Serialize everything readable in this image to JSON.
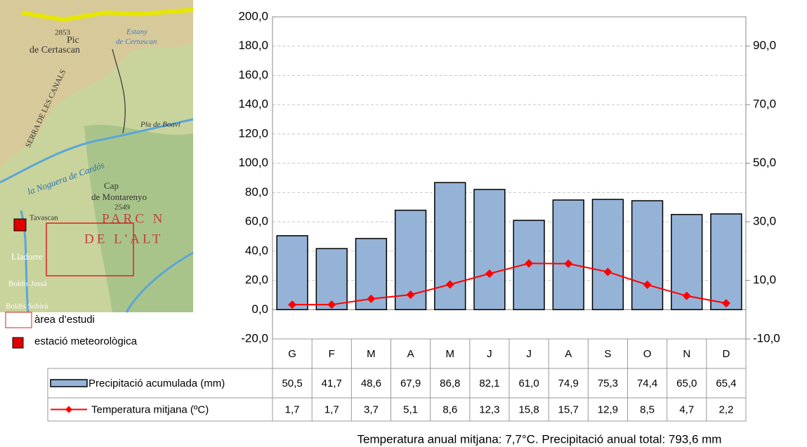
{
  "chart_data": {
    "type": "bar",
    "categories": [
      "G",
      "F",
      "M",
      "A",
      "M",
      "J",
      "J",
      "A",
      "S",
      "O",
      "N",
      "D"
    ],
    "series": [
      {
        "name": "Precipitació acumulada (mm)",
        "type": "bar",
        "color": "#95b3d7",
        "values": [
          50.5,
          41.7,
          48.6,
          67.9,
          86.8,
          82.1,
          61.0,
          74.9,
          75.3,
          74.4,
          65.0,
          65.4
        ],
        "value_labels": [
          "50,5",
          "41,7",
          "48,6",
          "67,9",
          "86,8",
          "82,1",
          "61,0",
          "74,9",
          "75,3",
          "74,4",
          "65,0",
          "65,4"
        ]
      },
      {
        "name": "Temperatura mitjana (ºC)",
        "type": "line",
        "axis": "y2",
        "color": "#ff0000",
        "values": [
          1.7,
          1.7,
          3.7,
          5.1,
          8.6,
          12.3,
          15.8,
          15.7,
          12.9,
          8.5,
          4.7,
          2.2
        ],
        "value_labels": [
          "1,7",
          "1,7",
          "3,7",
          "5,1",
          "8,6",
          "12,3",
          "15,8",
          "15,7",
          "12,9",
          "8,5",
          "4,7",
          "2,2"
        ]
      }
    ],
    "ylim": [
      -20,
      200
    ],
    "yticks": [
      {
        "value": -20,
        "label": "-20,0"
      },
      {
        "value": 0,
        "label": "0,0"
      },
      {
        "value": 20,
        "label": "20,0"
      },
      {
        "value": 40,
        "label": "40,0"
      },
      {
        "value": 60,
        "label": "60,0"
      },
      {
        "value": 80,
        "label": "80,0"
      },
      {
        "value": 100,
        "label": "100,0"
      },
      {
        "value": 120,
        "label": "120,0"
      },
      {
        "value": 140,
        "label": "140,0"
      },
      {
        "value": 160,
        "label": "160,0"
      },
      {
        "value": 180,
        "label": "180,0"
      },
      {
        "value": 200,
        "label": "200,0"
      }
    ],
    "y2lim": [
      -10,
      100
    ],
    "y2ticks": [
      {
        "value": -10,
        "label": "-10,0"
      },
      {
        "value": 10,
        "label": "10,0"
      },
      {
        "value": 30,
        "label": "30,0"
      },
      {
        "value": 50,
        "label": "50,0"
      },
      {
        "value": 70,
        "label": "70,0"
      },
      {
        "value": 90,
        "label": "90,0"
      }
    ],
    "grid": true,
    "footnote": "Temperatura anual mitjana: 7,7°C. Precipitació anual total: 793,6 mm"
  },
  "map": {
    "labels": [
      "2853",
      "Pic",
      "de Certascan",
      "Estany",
      "de Certascan",
      "SERRA DE LES CANALS",
      "Pla de Boavi",
      "la Noguera de Cardós",
      "Cap",
      "de Montarenyo",
      "2549",
      "Tavascan",
      "PARC N",
      "DE L'ALT",
      "Lladorre",
      "Boldís Jussà",
      "Boldís Sobirà"
    ],
    "legend": [
      "àrea d’estudi",
      "estació meteorològica"
    ]
  }
}
